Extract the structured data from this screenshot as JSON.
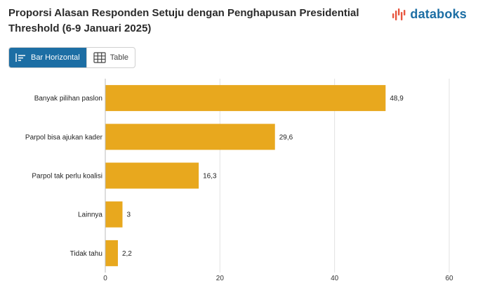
{
  "title": "Proporsi Alasan Responden Setuju dengan Penghapusan Presidential Threshold (6-9 Januari 2025)",
  "logo": {
    "text": "databoks",
    "icon": "databoks-logo-icon",
    "color": "#e8563f"
  },
  "view_toggle": {
    "bar_label": "Bar Horizontal",
    "table_label": "Table",
    "active": "bar",
    "bar_icon": "bar-horizontal-icon",
    "table_icon": "table-grid-icon",
    "accent": "#1c6ea4"
  },
  "chart_data": {
    "type": "bar",
    "orientation": "horizontal",
    "categories": [
      "Banyak pilihan paslon",
      "Parpol bisa ajukan kader",
      "Parpol tak perlu koalisi",
      "Lainnya",
      "Tidak tahu"
    ],
    "values": [
      48.9,
      29.6,
      16.3,
      3,
      2.2
    ],
    "value_labels": [
      "48,9",
      "29,6",
      "16,3",
      "3",
      "2,2"
    ],
    "xlim": [
      0,
      60
    ],
    "xticks": [
      0,
      20,
      40,
      60
    ],
    "bar_color": "#e8a81e",
    "grid": true
  }
}
